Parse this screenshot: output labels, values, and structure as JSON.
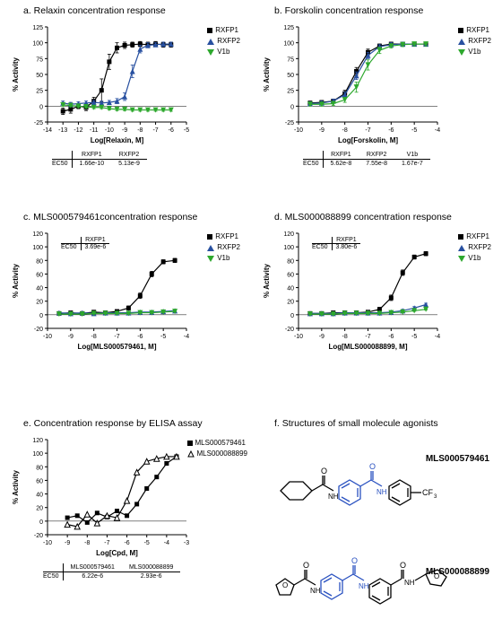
{
  "panels": {
    "a": {
      "title": "a. Relaxin concentration response",
      "xlabel": "Log[Relaxin, M]",
      "ylabel": "% Activity",
      "xlim": [
        -14,
        -5
      ],
      "ylim": [
        -25,
        125
      ],
      "xticks": [
        -14,
        -13,
        -12,
        -11,
        -10,
        -9,
        -8,
        -7,
        -6,
        -5
      ],
      "yticks": [
        -25,
        0,
        25,
        50,
        75,
        100,
        125
      ],
      "colors": {
        "RXFP1": "#000000",
        "RXFP2": "#2850a0",
        "V1b": "#2da82d"
      },
      "series": {
        "RXFP1": {
          "x": [
            -13,
            -12.5,
            -12,
            -11.5,
            -11,
            -10.5,
            -10,
            -9.5,
            -9,
            -8.5,
            -8,
            -7.5,
            -7,
            -6.5,
            -6
          ],
          "y": [
            -8,
            -5,
            0,
            -2,
            8,
            25,
            70,
            92,
            96,
            97,
            98,
            97,
            98,
            97,
            97
          ],
          "err": [
            5,
            6,
            4,
            5,
            6,
            18,
            12,
            8,
            5,
            4,
            4,
            4,
            4,
            4,
            4
          ]
        },
        "RXFP2": {
          "x": [
            -13,
            -12.5,
            -12,
            -11.5,
            -11,
            -10.5,
            -10,
            -9.5,
            -9,
            -8.5,
            -8,
            -7.5,
            -7,
            -6.5,
            -6
          ],
          "y": [
            5,
            3,
            4,
            5,
            6,
            5,
            6,
            8,
            15,
            55,
            90,
            96,
            97,
            98,
            98
          ],
          "err": [
            3,
            3,
            3,
            3,
            3,
            3,
            3,
            4,
            6,
            10,
            6,
            4,
            3,
            3,
            3
          ]
        },
        "V1b": {
          "x": [
            -13,
            -12.5,
            -12,
            -11.5,
            -11,
            -10.5,
            -10,
            -9.5,
            -9,
            -8.5,
            -8,
            -7.5,
            -7,
            -6.5,
            -6
          ],
          "y": [
            2,
            1,
            0,
            -1,
            -2,
            -2,
            -4,
            -5,
            -5,
            -6,
            -6,
            -6,
            -6,
            -6,
            -6
          ],
          "err": [
            2,
            2,
            2,
            2,
            2,
            2,
            2,
            2,
            2,
            2,
            2,
            2,
            2,
            2,
            2
          ]
        }
      },
      "ec50": {
        "headers": [
          "RXFP1",
          "RXFP2"
        ],
        "values": [
          "1.66e-10",
          "5.13e-9"
        ]
      }
    },
    "b": {
      "title": "b. Forskolin concentration response",
      "xlabel": "Log[Forskolin, M]",
      "ylabel": "% Activity",
      "xlim": [
        -10,
        -4
      ],
      "ylim": [
        -25,
        125
      ],
      "xticks": [
        -10,
        -9,
        -8,
        -7,
        -6,
        -5,
        -4
      ],
      "yticks": [
        -25,
        0,
        25,
        50,
        75,
        100,
        125
      ],
      "colors": {
        "RXFP1": "#000000",
        "RXFP2": "#2850a0",
        "V1b": "#2da82d"
      },
      "series": {
        "RXFP1": {
          "x": [
            -9.5,
            -9,
            -8.5,
            -8,
            -7.5,
            -7,
            -6.5,
            -6,
            -5.5,
            -5,
            -4.5
          ],
          "y": [
            5,
            6,
            8,
            20,
            55,
            85,
            95,
            98,
            98,
            98,
            98
          ],
          "err": [
            3,
            3,
            3,
            5,
            6,
            5,
            3,
            3,
            3,
            3,
            3
          ]
        },
        "RXFP2": {
          "x": [
            -9.5,
            -9,
            -8.5,
            -8,
            -7.5,
            -7,
            -6.5,
            -6,
            -5.5,
            -5,
            -4.5
          ],
          "y": [
            4,
            5,
            8,
            18,
            48,
            80,
            94,
            97,
            98,
            98,
            98
          ],
          "err": [
            3,
            3,
            3,
            4,
            6,
            5,
            3,
            3,
            3,
            3,
            3
          ]
        },
        "V1b": {
          "x": [
            -9.5,
            -9,
            -8.5,
            -8,
            -7.5,
            -7,
            -6.5,
            -6,
            -5.5,
            -5,
            -4.5
          ],
          "y": [
            3,
            3,
            4,
            10,
            30,
            65,
            88,
            95,
            97,
            98,
            98
          ],
          "err": [
            3,
            3,
            3,
            4,
            8,
            8,
            5,
            3,
            3,
            3,
            3
          ]
        }
      },
      "ec50": {
        "headers": [
          "RXFP1",
          "RXFP2",
          "V1b"
        ],
        "values": [
          "5.62e-8",
          "7.55e-8",
          "1.67e-7"
        ]
      }
    },
    "c": {
      "title": "c. MLS000579461concentration response",
      "xlabel": "Log[MLS000579461, M]",
      "ylabel": "% Activity",
      "xlim": [
        -10,
        -4
      ],
      "ylim": [
        -20,
        120
      ],
      "xticks": [
        -10,
        -9,
        -8,
        -7,
        -6,
        -5,
        -4
      ],
      "yticks": [
        -20,
        0,
        20,
        40,
        60,
        80,
        100,
        120
      ],
      "colors": {
        "RXFP1": "#000000",
        "RXFP2": "#2850a0",
        "V1b": "#2da82d"
      },
      "series": {
        "RXFP1": {
          "x": [
            -9.5,
            -9,
            -8.5,
            -8,
            -7.5,
            -7,
            -6.5,
            -6,
            -5.5,
            -5,
            -4.5
          ],
          "y": [
            2,
            3,
            2,
            4,
            3,
            5,
            10,
            28,
            60,
            78,
            80
          ],
          "err": [
            2,
            2,
            2,
            2,
            2,
            2,
            3,
            4,
            4,
            3,
            3
          ]
        },
        "RXFP2": {
          "x": [
            -9.5,
            -9,
            -8.5,
            -8,
            -7.5,
            -7,
            -6.5,
            -6,
            -5.5,
            -5,
            -4.5
          ],
          "y": [
            3,
            2,
            3,
            2,
            3,
            3,
            3,
            4,
            4,
            5,
            6
          ],
          "err": [
            1,
            1,
            1,
            1,
            1,
            1,
            1,
            1,
            1,
            1,
            1
          ]
        },
        "V1b": {
          "x": [
            -9.5,
            -9,
            -8.5,
            -8,
            -7.5,
            -7,
            -6.5,
            -6,
            -5.5,
            -5,
            -4.5
          ],
          "y": [
            1,
            1,
            1,
            2,
            2,
            2,
            2,
            3,
            3,
            4,
            5
          ],
          "err": [
            1,
            1,
            1,
            1,
            1,
            1,
            1,
            1,
            1,
            1,
            1
          ]
        }
      },
      "ec50_inset": {
        "headers": [
          "RXFP1"
        ],
        "values": [
          "3.69e-6"
        ]
      }
    },
    "d": {
      "title": "d. MLS000088899 concentration response",
      "xlabel": "Log[MLS000088899, M]",
      "ylabel": "% Activity",
      "xlim": [
        -10,
        -4
      ],
      "ylim": [
        -20,
        120
      ],
      "xticks": [
        -10,
        -9,
        -8,
        -7,
        -6,
        -5,
        -4
      ],
      "yticks": [
        -20,
        0,
        20,
        40,
        60,
        80,
        100,
        120
      ],
      "colors": {
        "RXFP1": "#000000",
        "RXFP2": "#2850a0",
        "V1b": "#2da82d"
      },
      "series": {
        "RXFP1": {
          "x": [
            -9.5,
            -9,
            -8.5,
            -8,
            -7.5,
            -7,
            -6.5,
            -6,
            -5.5,
            -5,
            -4.5
          ],
          "y": [
            2,
            2,
            3,
            3,
            3,
            4,
            8,
            25,
            62,
            85,
            90
          ],
          "err": [
            2,
            2,
            2,
            2,
            2,
            2,
            3,
            4,
            4,
            3,
            3
          ]
        },
        "RXFP2": {
          "x": [
            -9.5,
            -9,
            -8.5,
            -8,
            -7.5,
            -7,
            -6.5,
            -6,
            -5.5,
            -5,
            -4.5
          ],
          "y": [
            2,
            2,
            2,
            3,
            3,
            3,
            3,
            4,
            6,
            10,
            15
          ],
          "err": [
            1,
            1,
            1,
            1,
            1,
            1,
            1,
            1,
            2,
            2,
            2
          ]
        },
        "V1b": {
          "x": [
            -9.5,
            -9,
            -8.5,
            -8,
            -7.5,
            -7,
            -6.5,
            -6,
            -5.5,
            -5,
            -4.5
          ],
          "y": [
            1,
            1,
            1,
            2,
            2,
            2,
            2,
            3,
            4,
            6,
            8
          ],
          "err": [
            1,
            1,
            1,
            1,
            1,
            1,
            1,
            1,
            1,
            1,
            1
          ]
        }
      },
      "ec50_inset": {
        "headers": [
          "RXFP1"
        ],
        "values": [
          "3.80e-6"
        ]
      }
    },
    "e": {
      "title": "e. Concentration response by ELISA assay",
      "xlabel": "Log[Cpd, M]",
      "ylabel": "% Activity",
      "xlim": [
        -10,
        -3
      ],
      "ylim": [
        -20,
        120
      ],
      "xticks": [
        -10,
        -9,
        -8,
        -7,
        -6,
        -5,
        -4,
        -3
      ],
      "yticks": [
        -20,
        0,
        20,
        40,
        60,
        80,
        100,
        120
      ],
      "colors": {
        "MLS000579461": "#000000",
        "MLS000088899": "#000000"
      },
      "series": {
        "MLS000579461": {
          "x": [
            -9,
            -8.5,
            -8,
            -7.5,
            -7,
            -6.5,
            -6,
            -5.5,
            -5,
            -4.5,
            -4,
            -3.5
          ],
          "y": [
            5,
            8,
            -2,
            12,
            6,
            15,
            8,
            25,
            48,
            65,
            85,
            95
          ],
          "marker": "square-filled"
        },
        "MLS000088899": {
          "x": [
            -9,
            -8.5,
            -8,
            -7.5,
            -7,
            -6.5,
            -6,
            -5.5,
            -5,
            -4.5,
            -4,
            -3.5
          ],
          "y": [
            -5,
            -8,
            10,
            -3,
            8,
            5,
            30,
            72,
            88,
            92,
            95,
            95
          ],
          "marker": "triangle-open"
        }
      },
      "ec50": {
        "headers": [
          "MLS000579461",
          "MLS000088899"
        ],
        "values": [
          "6.22e-6",
          "2.93e-6"
        ]
      }
    },
    "f": {
      "title": "f. Structures of small molecule agonists",
      "labels": [
        "MLS000579461",
        "MLS000088899"
      ],
      "struct_color": "#2850c0"
    }
  },
  "legend_labels": {
    "RXFP1": "RXFP1",
    "RXFP2": "RXFP2",
    "V1b": "V1b",
    "MLS000579461": "MLS000579461",
    "MLS000088899": "MLS000088899"
  }
}
